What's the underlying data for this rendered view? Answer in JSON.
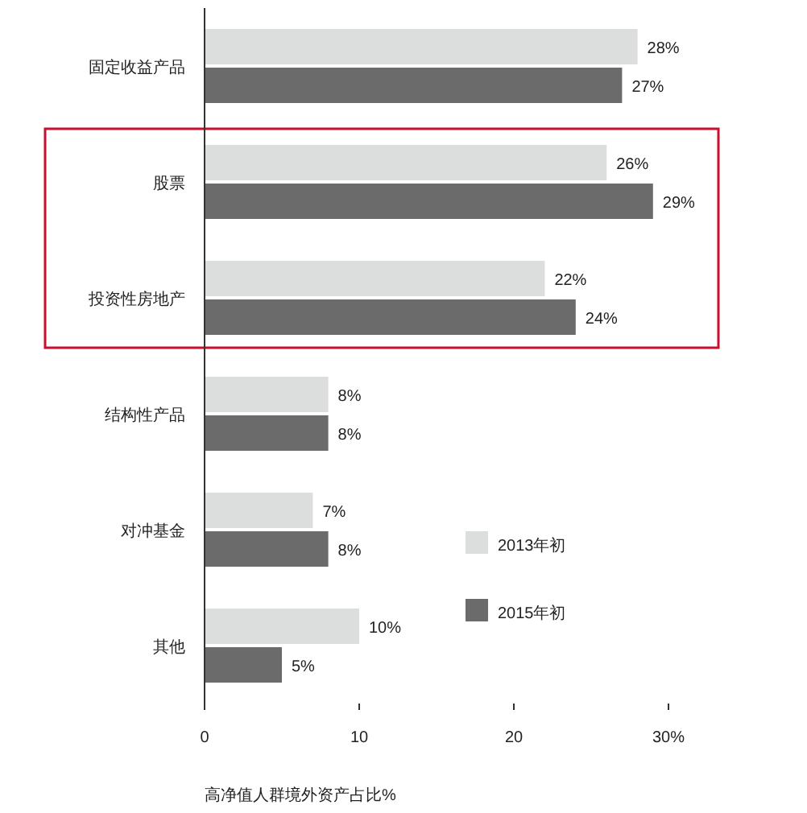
{
  "chart_data": {
    "type": "bar",
    "orientation": "horizontal",
    "xlabel": "高净值人群境外资产占比%",
    "categories": [
      "固定收益产品",
      "股票",
      "投资性房地产",
      "结构性产品",
      "对冲基金",
      "其他"
    ],
    "series": [
      {
        "name": "2013年初",
        "color": "#dcdddd",
        "values": [
          28,
          26,
          22,
          8,
          7,
          10
        ],
        "value_labels": [
          "28%",
          "26%",
          "22%",
          "8%",
          "7%",
          "10%"
        ]
      },
      {
        "name": "2015年初",
        "color": "#6b6b6b",
        "values": [
          27,
          29,
          24,
          8,
          8,
          5
        ],
        "value_labels": [
          "27%",
          "29%",
          "24%",
          "8%",
          "8%",
          "5%"
        ]
      }
    ],
    "xlim": [
      0,
      30
    ],
    "xticks": [
      0,
      10,
      20,
      {
        "value": 30,
        "label": "30%"
      }
    ],
    "grid": false,
    "legend": "right"
  }
}
